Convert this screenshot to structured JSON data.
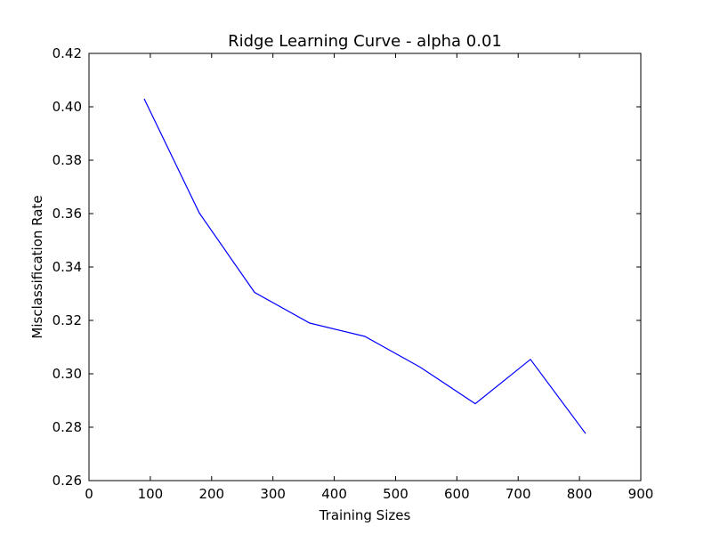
{
  "chart_data": {
    "type": "line",
    "title": "Ridge Learning Curve - alpha 0.01",
    "xlabel": "Training Sizes",
    "ylabel": "Misclassification Rate",
    "xlim": [
      0,
      900
    ],
    "ylim": [
      0.26,
      0.42
    ],
    "xticks": [
      "0",
      "100",
      "200",
      "300",
      "400",
      "500",
      "600",
      "700",
      "800",
      "900"
    ],
    "yticks": [
      "0.26",
      "0.28",
      "0.30",
      "0.32",
      "0.34",
      "0.36",
      "0.38",
      "0.40",
      "0.42"
    ],
    "grid": false,
    "legend": "none",
    "series": [
      {
        "color": "#0000ff",
        "x": [
          90,
          180,
          270,
          360,
          450,
          540,
          630,
          720,
          810
        ],
        "y": [
          0.403,
          0.3602,
          0.3305,
          0.319,
          0.314,
          0.3025,
          0.2888,
          0.3054,
          0.2776
        ]
      }
    ]
  }
}
